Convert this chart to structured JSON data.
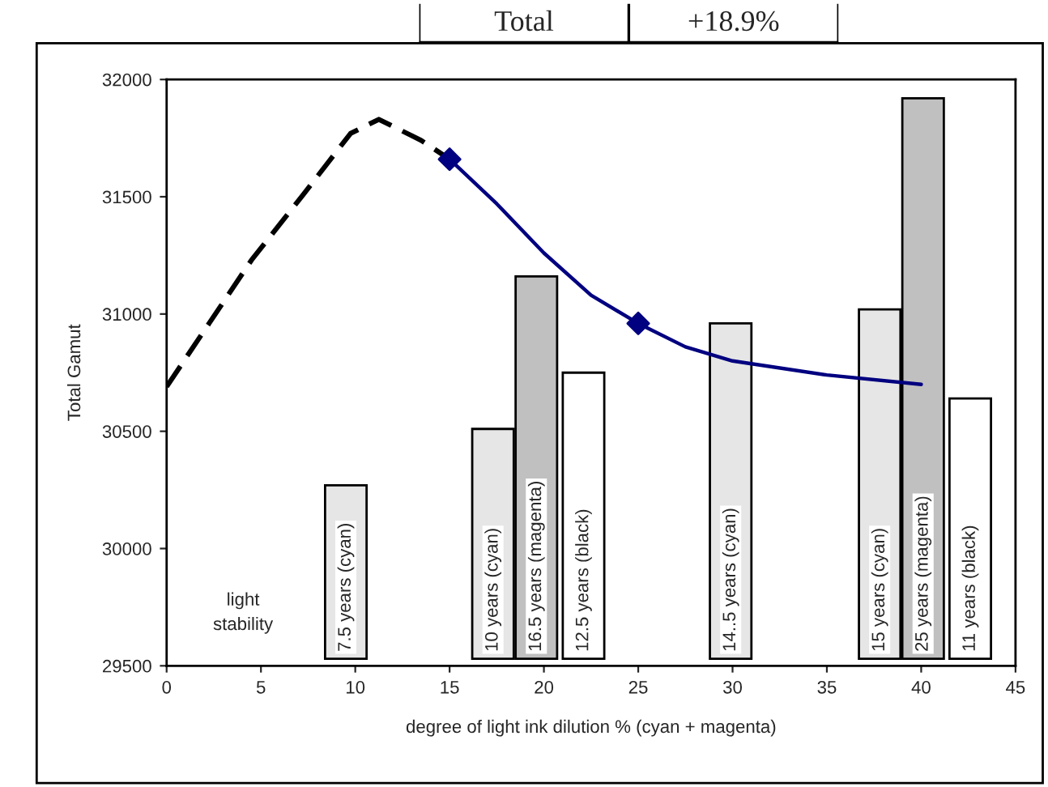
{
  "chart_data": {
    "type": "bar",
    "xlabel": "degree of light ink dilution % (cyan + magenta)",
    "ylabel": "Total Gamut",
    "xlim": [
      0,
      45
    ],
    "xticks": [
      0,
      5,
      10,
      15,
      20,
      25,
      30,
      35,
      40,
      45
    ],
    "ylim": [
      29500,
      32000
    ],
    "yticks": [
      29500,
      30000,
      30500,
      31000,
      31500,
      32000
    ],
    "grid": false,
    "legend": false,
    "series": [
      {
        "color": "#e6e6e6",
        "x": [
          9.5,
          17.3,
          29.9,
          37.8
        ],
        "base": [
          29530,
          29530,
          29530,
          29530
        ],
        "values": [
          740,
          980,
          1430,
          1490
        ]
      },
      {
        "color": "#c0c0c0",
        "x": [
          19.6,
          40.1
        ],
        "base": [
          29530,
          29530
        ],
        "values": [
          1630,
          2390
        ]
      },
      {
        "color": "#ffffff",
        "x": [
          22.1,
          42.6
        ],
        "base": [
          29530,
          29530
        ],
        "values": [
          1220,
          1110
        ]
      },
      {
        "type": "line",
        "color": "#000000",
        "line_style": "dashed",
        "marker": "none",
        "x": [
          0,
          2.25,
          4.5,
          7.25,
          9.75,
          11.25,
          13.5,
          15
        ],
        "values": [
          30690,
          30960,
          31230,
          31510,
          31770,
          31830,
          31740,
          31660
        ]
      },
      {
        "type": "line",
        "color": "#000080",
        "line_style": "solid",
        "marker": "none",
        "x": [
          15,
          17.5,
          20,
          22.5,
          25,
          27.5,
          30,
          35,
          40
        ],
        "values": [
          31660,
          31470,
          31260,
          31080,
          30960,
          30860,
          30800,
          30740,
          30700
        ]
      },
      {
        "type": "scatter",
        "color": "#000080",
        "marker": "diamond",
        "x": [
          15,
          25
        ],
        "values": [
          31660,
          30960
        ]
      }
    ],
    "annotations": [
      "Total",
      "+18.9%",
      "light\nstability",
      {
        "text": "7.5 years (cyan)",
        "x": 9.5,
        "y": 29560
      },
      {
        "text": "10 years (cyan)",
        "x": 17.3,
        "y": 29560
      },
      {
        "text": "16.5 years (magenta)",
        "x": 19.6,
        "y": 29560
      },
      {
        "text": "12.5 years (black)",
        "x": 22.1,
        "y": 29560
      },
      {
        "text": "14..5 years (cyan)",
        "x": 29.9,
        "y": 29560
      },
      {
        "text": "15 years (cyan)",
        "x": 37.8,
        "y": 29560
      },
      {
        "text": "25 years (magenta)",
        "x": 40.1,
        "y": 29560
      },
      {
        "text": "11 years (black)",
        "x": 42.6,
        "y": 29560
      }
    ]
  }
}
